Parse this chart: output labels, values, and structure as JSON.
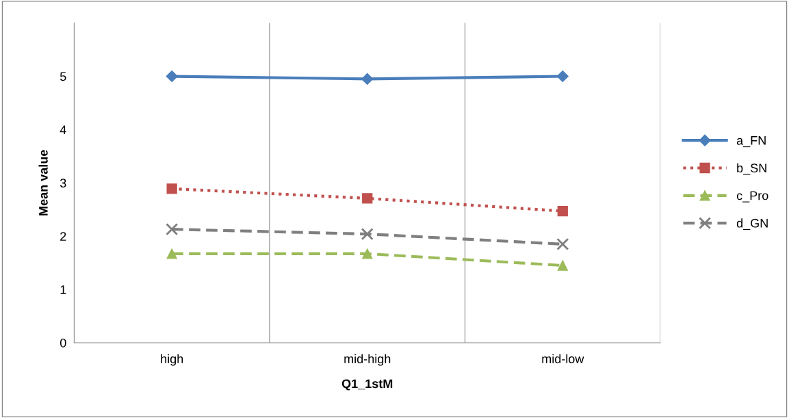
{
  "chart_data": {
    "type": "line",
    "xlabel": "Q1_1stM",
    "ylabel": "Mean value",
    "categories": [
      "high",
      "mid-high",
      "mid-low"
    ],
    "series": [
      {
        "name": "a_FN",
        "color": "#4a7ebb",
        "values": [
          5.0,
          4.95,
          5.0
        ],
        "marker": "diamond",
        "line_style": "solid"
      },
      {
        "name": "b_SN",
        "color": "#c0504d",
        "values": [
          2.89,
          2.71,
          2.47
        ],
        "marker": "square",
        "line_style": "dotted"
      },
      {
        "name": "c_Pro",
        "color": "#9bbb59",
        "values": [
          1.67,
          1.67,
          1.45
        ],
        "marker": "triangle",
        "line_style": "dashed"
      },
      {
        "name": "d_GN",
        "color": "#7f7f7f",
        "values": [
          2.13,
          2.04,
          1.85
        ],
        "marker": "cross",
        "line_style": "dashed"
      }
    ],
    "ylim": [
      0,
      6
    ],
    "yticks": [
      0,
      1,
      2,
      3,
      4,
      5
    ],
    "grid": "x",
    "legend": "right"
  }
}
